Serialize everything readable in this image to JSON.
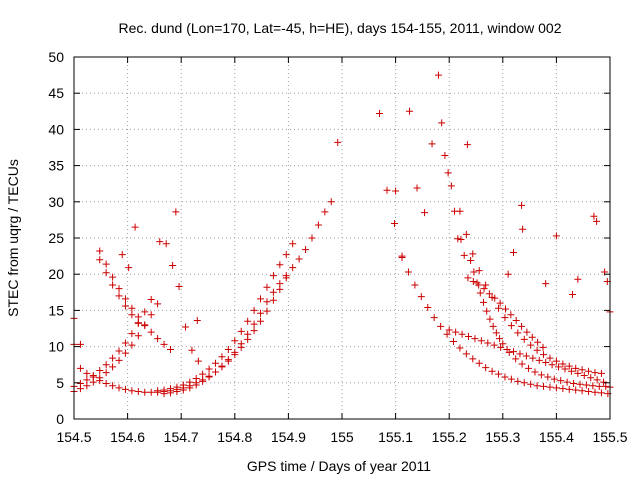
{
  "chart_data": {
    "type": "scatter",
    "title": "Rec. dund (Lon=170, Lat=-45, h=HE), days 154-155, 2011, window 002",
    "xlabel": "GPS time / Days of year 2011",
    "ylabel": "STEC from uqrg / TECUs",
    "xlim": [
      154.5,
      155.5
    ],
    "ylim": [
      0,
      50
    ],
    "x_ticks": [
      154.5,
      154.6,
      154.7,
      154.8,
      154.9,
      155,
      155.1,
      155.2,
      155.3,
      155.4,
      155.5
    ],
    "x_tick_labels": [
      "154.5",
      "154.6",
      "154.7",
      "154.8",
      "154.9",
      "155",
      "155.1",
      "155.2",
      "155.3",
      "155.4",
      "155.5"
    ],
    "y_ticks": [
      0,
      5,
      10,
      15,
      20,
      25,
      30,
      35,
      40,
      45,
      50
    ],
    "y_tick_labels": [
      "0",
      "5",
      "10",
      "15",
      "20",
      "25",
      "30",
      "35",
      "40",
      "45",
      "50"
    ],
    "grid": true,
    "marker": "plus",
    "color": "#cc0000",
    "series": [
      {
        "x": [
          154.5,
          154.512,
          154.524,
          154.536,
          154.548,
          154.56,
          154.572,
          154.584,
          154.596,
          154.608,
          154.62,
          154.632,
          154.644,
          154.656,
          154.668,
          154.68,
          154.692,
          154.704,
          154.716,
          154.728,
          154.74,
          154.752,
          154.764,
          154.776,
          154.788,
          154.8,
          154.812,
          154.824,
          154.836,
          154.848,
          154.86,
          154.872,
          154.884,
          154.896,
          154.908,
          154.92,
          154.932,
          154.944,
          154.956,
          154.968,
          154.98,
          154.992,
          154.5,
          154.512,
          154.524,
          154.536,
          154.548,
          154.56,
          154.572,
          154.584,
          154.596,
          154.608,
          154.62,
          154.632,
          154.644,
          154.656,
          154.668,
          154.68,
          154.692,
          154.704,
          154.716,
          154.728,
          154.74,
          154.752,
          154.764,
          154.776,
          154.788,
          154.8,
          154.812,
          154.824,
          154.836,
          154.848,
          154.86,
          154.872,
          154.884,
          154.896,
          154.908,
          154.5,
          154.512,
          154.524,
          154.536,
          154.548,
          154.56,
          154.572,
          154.584,
          154.596,
          154.608,
          154.62,
          154.632,
          154.644,
          154.656,
          154.668,
          154.68,
          154.692,
          154.704,
          154.716,
          154.728,
          154.74,
          154.752,
          154.764,
          154.776,
          154.788,
          154.8,
          154.812,
          154.824,
          154.836,
          154.848,
          154.86,
          154.872,
          154.884,
          154.896,
          154.548,
          154.56,
          154.572,
          154.584,
          154.596,
          154.608,
          154.62,
          154.632,
          154.644,
          154.656,
          154.668,
          154.68,
          154.548,
          154.56,
          154.572,
          154.584,
          154.596,
          154.608,
          154.62,
          154.66,
          154.672,
          154.684,
          154.696,
          154.708,
          154.72,
          154.732,
          154.5,
          154.512,
          154.59,
          154.602,
          154.614,
          154.69,
          154.73,
          155.07,
          155.084,
          155.098,
          155.112,
          155.126,
          155.14,
          155.154,
          155.168,
          155.18,
          155.186,
          155.192,
          155.198,
          155.204,
          155.21,
          155.216,
          155.222,
          155.228,
          155.234,
          155.24,
          155.246,
          155.252,
          155.258,
          155.264,
          155.27,
          155.276,
          155.282,
          155.288,
          155.294,
          155.3,
          155.312,
          155.324,
          155.336,
          155.348,
          155.36,
          155.372,
          155.384,
          155.396,
          155.408,
          155.42,
          155.432,
          155.444,
          155.456,
          155.468,
          155.48,
          155.492,
          155.5,
          155.1,
          155.112,
          155.124,
          155.136,
          155.148,
          155.16,
          155.172,
          155.184,
          155.196,
          155.208,
          155.22,
          155.232,
          155.244,
          155.256,
          155.268,
          155.28,
          155.292,
          155.304,
          155.316,
          155.328,
          155.34,
          155.352,
          155.364,
          155.376,
          155.388,
          155.4,
          155.412,
          155.424,
          155.436,
          155.448,
          155.46,
          155.472,
          155.484,
          155.496,
          155.2,
          155.212,
          155.224,
          155.236,
          155.248,
          155.26,
          155.272,
          155.284,
          155.296,
          155.308,
          155.32,
          155.332,
          155.344,
          155.356,
          155.368,
          155.38,
          155.392,
          155.404,
          155.416,
          155.428,
          155.44,
          155.452,
          155.464,
          155.476,
          155.488,
          155.5,
          155.22,
          155.232,
          155.244,
          155.256,
          155.268,
          155.28,
          155.292,
          155.304,
          155.316,
          155.328,
          155.34,
          155.352,
          155.364,
          155.376,
          155.388,
          155.4,
          155.412,
          155.424,
          155.436,
          155.448,
          155.46,
          155.472,
          155.484,
          155.235,
          155.245,
          155.255,
          155.265,
          155.275,
          155.285,
          155.295,
          155.305,
          155.315,
          155.325,
          155.335,
          155.345,
          155.355,
          155.365,
          155.375,
          155.31,
          155.32,
          155.335,
          155.337,
          155.38,
          155.4,
          155.43,
          155.44,
          155.47,
          155.475,
          155.49,
          155.495
        ],
        "y": [
          3.8,
          4.2,
          4.6,
          5.1,
          5.7,
          6.4,
          7.2,
          8.1,
          9.1,
          10.2,
          11.5,
          12.9,
          14.4,
          15.9,
          3.5,
          3.6,
          3.8,
          4.0,
          4.3,
          4.7,
          5.2,
          5.8,
          6.5,
          7.3,
          8.2,
          9.2,
          10.4,
          11.7,
          13.1,
          14.6,
          16.2,
          17.5,
          18.7,
          19.8,
          20.9,
          22.1,
          23.4,
          25.0,
          26.8,
          28.6,
          30.0,
          38.2,
          4.5,
          4.9,
          5.4,
          6.0,
          6.7,
          7.5,
          8.4,
          9.4,
          10.5,
          11.8,
          13.2,
          14.8,
          16.5,
          3.9,
          4.0,
          4.2,
          4.4,
          4.7,
          5.1,
          5.6,
          6.2,
          6.9,
          7.7,
          8.6,
          9.6,
          10.8,
          12.1,
          13.5,
          15.0,
          16.6,
          18.2,
          19.8,
          21.3,
          22.7,
          24.2,
          10.3,
          7.0,
          6.3,
          5.8,
          5.3,
          4.9,
          4.6,
          4.3,
          4.1,
          3.9,
          3.8,
          3.7,
          3.7,
          3.7,
          3.8,
          3.9,
          4.1,
          4.3,
          4.6,
          5.0,
          5.4,
          5.9,
          6.5,
          7.2,
          8.0,
          8.9,
          9.9,
          11.0,
          12.2,
          13.5,
          14.9,
          16.4,
          17.9,
          19.5,
          23.2,
          21.4,
          19.6,
          18.0,
          16.6,
          15.3,
          14.1,
          13.0,
          12.0,
          11.1,
          10.3,
          9.6,
          22.0,
          20.2,
          18.5,
          17.0,
          15.6,
          14.4,
          13.3,
          24.5,
          24.2,
          21.2,
          18.3,
          12.7,
          9.5,
          8.0,
          13.9,
          10.3,
          22.7,
          20.9,
          26.5,
          28.6,
          13.6,
          42.2,
          31.6,
          27.0,
          22.5,
          42.5,
          31.9,
          28.5,
          38.0,
          47.5,
          40.9,
          36.4,
          34.0,
          32.2,
          28.7,
          24.9,
          24.8,
          22.6,
          37.9,
          21.9,
          20.3,
          18.8,
          17.4,
          16.1,
          14.9,
          13.8,
          12.8,
          11.9,
          11.1,
          10.4,
          9.2,
          8.3,
          7.6,
          7.0,
          6.5,
          6.1,
          5.8,
          5.5,
          5.3,
          5.1,
          4.9,
          4.8,
          4.7,
          4.6,
          4.5,
          4.5,
          4.4,
          31.5,
          22.3,
          20.3,
          18.5,
          16.9,
          15.4,
          14.0,
          12.8,
          11.7,
          10.7,
          9.8,
          9.0,
          8.3,
          7.7,
          7.1,
          6.6,
          6.2,
          5.8,
          5.5,
          5.2,
          5.0,
          4.8,
          4.6,
          4.5,
          4.4,
          4.3,
          4.2,
          4.1,
          4.0,
          3.9,
          3.8,
          3.7,
          3.6,
          3.5,
          12.3,
          12.0,
          11.7,
          11.4,
          11.1,
          10.8,
          10.5,
          10.2,
          9.9,
          9.6,
          9.3,
          9.0,
          8.7,
          8.4,
          8.1,
          7.8,
          7.5,
          7.2,
          6.9,
          6.6,
          6.3,
          6.0,
          5.7,
          5.4,
          5.1,
          14.8,
          28.7,
          25.5,
          22.8,
          20.5,
          18.5,
          16.8,
          15.3,
          14.0,
          12.9,
          11.9,
          11.0,
          10.2,
          9.5,
          8.9,
          8.4,
          8.0,
          7.6,
          7.3,
          7.0,
          6.8,
          6.6,
          6.4,
          6.3,
          19.5,
          19.0,
          18.5,
          18.0,
          17.3,
          16.7,
          16.0,
          15.2,
          14.4,
          13.6,
          12.8,
          12.0,
          11.3,
          10.6,
          9.9,
          20.0,
          23.0,
          29.5,
          26.2,
          18.7,
          25.3,
          17.2,
          19.3,
          28.0,
          27.3,
          20.3,
          19.0
        ]
      }
    ]
  }
}
